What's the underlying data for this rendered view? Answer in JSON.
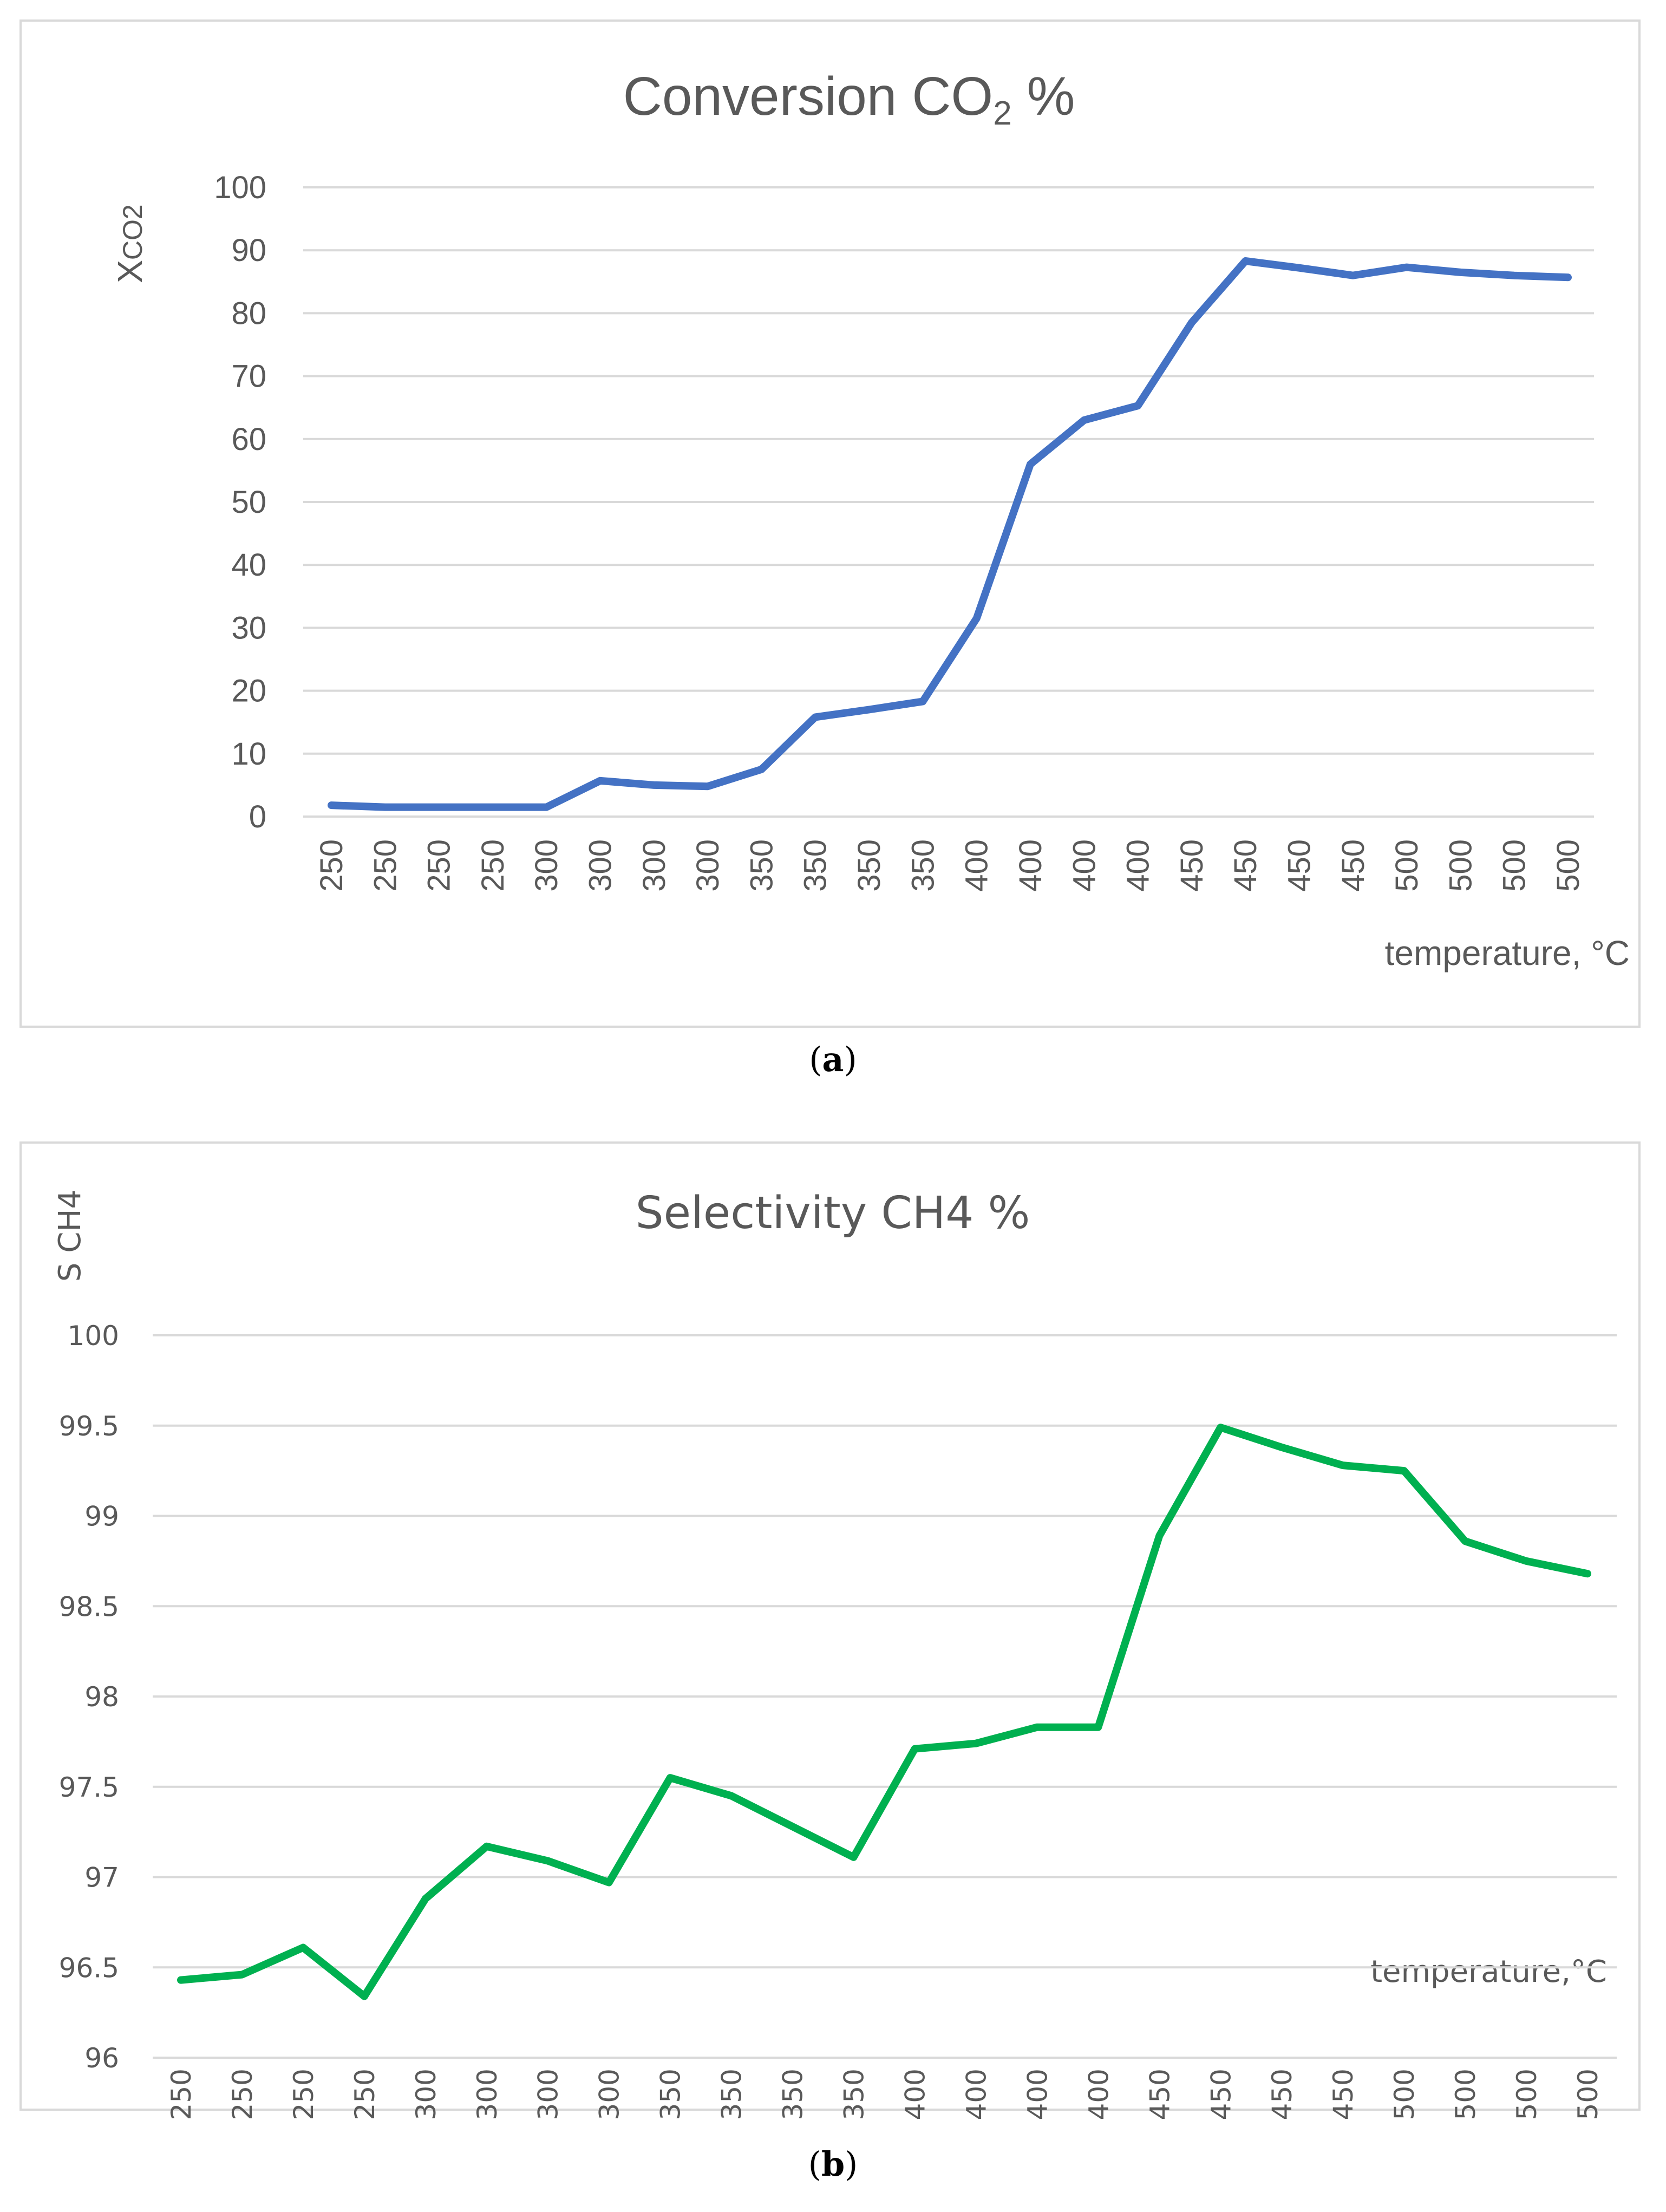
{
  "chart_data": [
    {
      "type": "line",
      "panel_label": "a",
      "title": "Conversion CO2 %",
      "title_main": "Conversion CO",
      "title_sub": "2",
      "title_suffix": " %",
      "ylabel": "XCO2",
      "ylabel_main": "X",
      "ylabel_sub": "CO2",
      "xlabel": "temperature, °C",
      "ylim": [
        0,
        100
      ],
      "yticks": [
        "0",
        "10",
        "20",
        "30",
        "40",
        "50",
        "60",
        "70",
        "80",
        "90",
        "100"
      ],
      "grid": true,
      "categories": [
        "250",
        "250",
        "250",
        "250",
        "300",
        "300",
        "300",
        "300",
        "350",
        "350",
        "350",
        "350",
        "400",
        "400",
        "400",
        "400",
        "450",
        "450",
        "450",
        "450",
        "500",
        "500",
        "500",
        "500"
      ],
      "series": [
        {
          "name": "Conversion CO2",
          "color": "#4472c4",
          "values": [
            1.8,
            1.5,
            1.5,
            1.5,
            1.5,
            5.7,
            5.0,
            4.8,
            7.5,
            15.8,
            17.0,
            18.3,
            31.5,
            56.0,
            63.0,
            65.3,
            78.5,
            88.3,
            87.2,
            86.0,
            87.3,
            86.5,
            86.0,
            85.7
          ]
        }
      ]
    },
    {
      "type": "line",
      "panel_label": "b",
      "title": "Selectivity CH4 %",
      "ylabel": "S CH4",
      "xlabel": "temperature,°C",
      "ylim": [
        96,
        100
      ],
      "yticks": [
        "96",
        "96.5",
        "97",
        "97.5",
        "98",
        "98.5",
        "99",
        "99.5",
        "100"
      ],
      "grid": true,
      "categories": [
        "250",
        "250",
        "250",
        "250",
        "300",
        "300",
        "300",
        "300",
        "350",
        "350",
        "350",
        "350",
        "400",
        "400",
        "400",
        "400",
        "450",
        "450",
        "450",
        "450",
        "500",
        "500",
        "500",
        "500"
      ],
      "series": [
        {
          "name": "Selectivity CH4",
          "color": "#00b050",
          "values": [
            96.43,
            96.46,
            96.61,
            96.34,
            96.88,
            97.17,
            97.09,
            96.97,
            97.55,
            97.45,
            97.28,
            97.11,
            97.71,
            97.74,
            97.83,
            97.83,
            98.89,
            99.49,
            99.38,
            99.28,
            99.25,
            98.86,
            98.75,
            98.68
          ]
        }
      ]
    }
  ]
}
